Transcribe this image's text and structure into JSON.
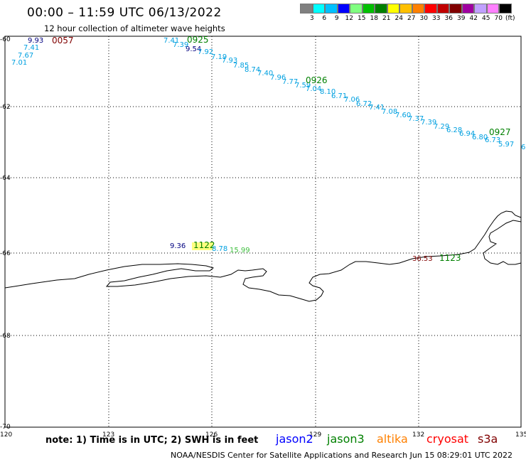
{
  "header": {
    "title": "00:00 – 11:59 UTC 06/13/2022",
    "subtitle": "12 hour collection of altimeter wave heights"
  },
  "color_scale": {
    "unit": "(ft)",
    "colors": [
      "#808080",
      "#00ffff",
      "#00c0ff",
      "#0000ff",
      "#80ff80",
      "#00c000",
      "#008000",
      "#ffff00",
      "#ffc000",
      "#ff8000",
      "#ff0000",
      "#c00000",
      "#800000",
      "#a000a0",
      "#c0a0ff",
      "#ff80ff",
      "#000000"
    ],
    "labels": [
      "3",
      "6",
      "9",
      "12",
      "15",
      "18",
      "21",
      "24",
      "27",
      "30",
      "33",
      "36",
      "39",
      "42",
      "45",
      "70"
    ]
  },
  "axes": {
    "lon_labels": [
      "120",
      "123",
      "126",
      "129",
      "132",
      "135"
    ],
    "lat_labels": [
      "-60",
      "-62",
      "-64",
      "-66",
      "-68",
      "-70"
    ]
  },
  "passes": [
    {
      "label": "0057",
      "color": "#800000",
      "values": [
        {
          "v": "9.93",
          "c": "#000080"
        },
        {
          "v": "7.41",
          "c": "#00a0e0"
        },
        {
          "v": "7.67",
          "c": "#00a0e0"
        },
        {
          "v": "7.01",
          "c": "#00a0e0"
        }
      ]
    },
    {
      "label": "0925",
      "color": "#008000",
      "values": [
        {
          "v": "7.41",
          "c": "#00a0e0"
        },
        {
          "v": "7.39",
          "c": "#00a0e0"
        },
        {
          "v": "9.54",
          "c": "#000080"
        },
        {
          "v": "7.92",
          "c": "#00a0e0"
        },
        {
          "v": "7.19",
          "c": "#00a0e0"
        },
        {
          "v": "7.93",
          "c": "#00a0e0"
        },
        {
          "v": "7.85",
          "c": "#00a0e0"
        },
        {
          "v": "8.74",
          "c": "#00a0e0"
        },
        {
          "v": "7.40",
          "c": "#00a0e0"
        },
        {
          "v": "7.96",
          "c": "#00a0e0"
        },
        {
          "v": "7.77",
          "c": "#00a0e0"
        },
        {
          "v": "7.59",
          "c": "#00a0e0"
        },
        {
          "v": "7.04",
          "c": "#00a0e0"
        }
      ]
    },
    {
      "label": "0926",
      "color": "#008000",
      "values": [
        {
          "v": "8.10",
          "c": "#00a0e0"
        },
        {
          "v": "6.71",
          "c": "#00a0e0"
        },
        {
          "v": "7.06",
          "c": "#00a0e0"
        },
        {
          "v": "6.72",
          "c": "#00a0e0"
        },
        {
          "v": "7.41",
          "c": "#00a0e0"
        },
        {
          "v": "7.08",
          "c": "#00a0e0"
        },
        {
          "v": "7.60",
          "c": "#00a0e0"
        },
        {
          "v": "7.37",
          "c": "#00a0e0"
        },
        {
          "v": "7.39",
          "c": "#00a0e0"
        },
        {
          "v": "7.29",
          "c": "#00a0e0"
        },
        {
          "v": "6.28",
          "c": "#00a0e0"
        },
        {
          "v": "6.94",
          "c": "#00a0e0"
        },
        {
          "v": "6.80",
          "c": "#00a0e0"
        },
        {
          "v": "6.73",
          "c": "#00a0e0"
        },
        {
          "v": "5.97",
          "c": "#00a0e0"
        },
        {
          "v": "6",
          "c": "#00a0e0"
        }
      ]
    },
    {
      "label": "0927",
      "color": "#008000",
      "values": []
    },
    {
      "label": "1122",
      "color": "#008000",
      "values": [
        {
          "v": "9.36",
          "c": "#000080"
        },
        {
          "v": "8.78",
          "c": "#00a0e0"
        },
        {
          "v": "15.99",
          "c": "#40c040"
        }
      ]
    },
    {
      "label": "1123",
      "color": "#008000",
      "values": [
        {
          "v": "36.53",
          "c": "#800000"
        }
      ]
    }
  ],
  "footer": {
    "note": "note: 1) Time is in UTC; 2) SWH is in feet",
    "satellites": [
      {
        "name": "jason2",
        "color": "#0000ff"
      },
      {
        "name": "jason3",
        "color": "#008000"
      },
      {
        "name": "altika",
        "color": "#ff8000"
      },
      {
        "name": "cryosat",
        "color": "#ff0000"
      },
      {
        "name": "s3a",
        "color": "#800000"
      }
    ],
    "credit": "NOAA/NESDIS Center for Satellite Applications and Research    Jun 15 08:29:01 UTC 2022"
  }
}
